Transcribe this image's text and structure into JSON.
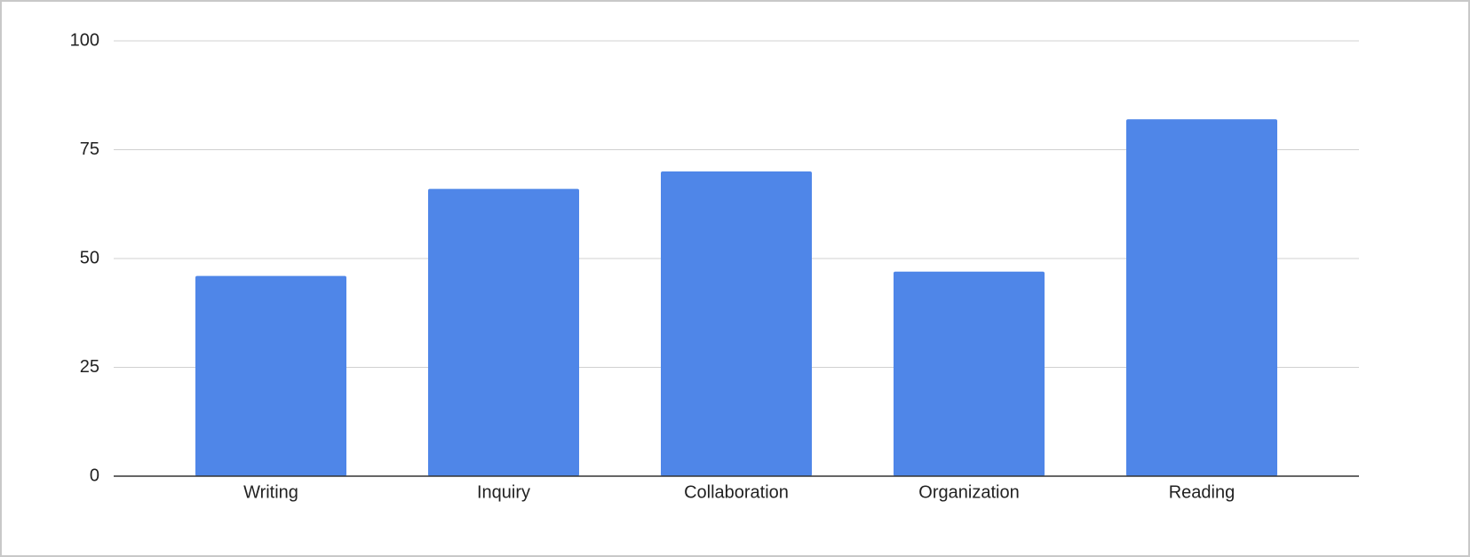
{
  "chart_data": {
    "type": "bar",
    "categories": [
      "Writing",
      "Inquiry",
      "Collaboration",
      "Organization",
      "Reading"
    ],
    "values": [
      46,
      66,
      70,
      47,
      82
    ],
    "color": "#4f86e8",
    "ylim": [
      0,
      100
    ],
    "yticks": [
      0,
      25,
      50,
      75,
      100
    ],
    "grid": true
  }
}
